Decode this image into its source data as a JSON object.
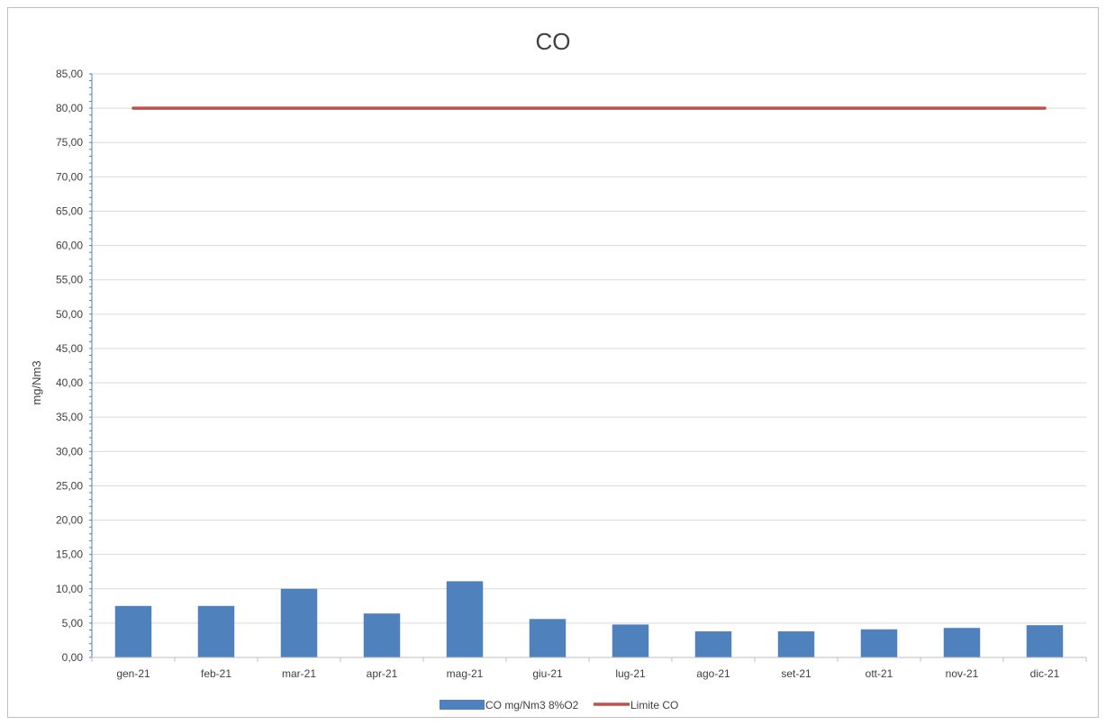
{
  "chart_data": {
    "type": "bar",
    "title": "CO",
    "xlabel": "",
    "ylabel": "mg/Nm3",
    "ylim": [
      0,
      85
    ],
    "ytick_step": 5,
    "decimal_separator": ",",
    "grid": true,
    "legend_position": "bottom",
    "categories": [
      "gen-21",
      "feb-21",
      "mar-21",
      "apr-21",
      "mag-21",
      "giu-21",
      "lug-21",
      "ago-21",
      "set-21",
      "ott-21",
      "nov-21",
      "dic-21"
    ],
    "series": [
      {
        "name": "CO mg/Nm3 8%O2",
        "type": "bar",
        "color": "#4f81bd",
        "values": [
          7.5,
          7.5,
          10.0,
          6.4,
          11.1,
          5.6,
          4.8,
          3.8,
          3.8,
          4.1,
          4.3,
          4.7
        ]
      },
      {
        "name": "Limite CO",
        "type": "line",
        "color": "#c0504d",
        "values": [
          80,
          80,
          80,
          80,
          80,
          80,
          80,
          80,
          80,
          80,
          80,
          80
        ]
      }
    ]
  }
}
